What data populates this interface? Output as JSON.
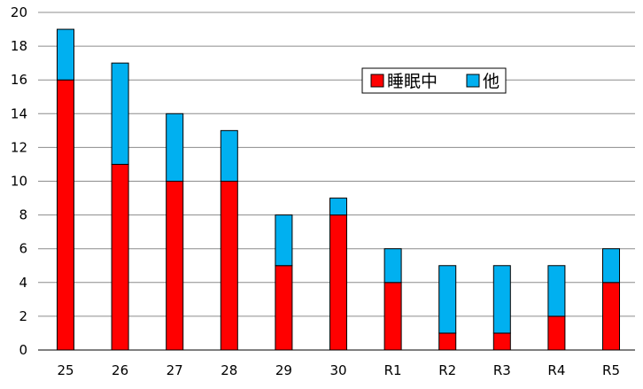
{
  "chart_data": {
    "type": "bar",
    "stacked": true,
    "categories": [
      "25",
      "26",
      "27",
      "28",
      "29",
      "30",
      "R1",
      "R2",
      "R3",
      "R4",
      "R5"
    ],
    "series": [
      {
        "name": "睡眠中",
        "color": "#ff0000",
        "values": [
          16,
          11,
          10,
          10,
          5,
          8,
          4,
          1,
          1,
          2,
          4
        ]
      },
      {
        "name": "他",
        "color": "#00b0f0",
        "values": [
          3,
          6,
          4,
          3,
          3,
          1,
          2,
          4,
          4,
          3,
          2
        ]
      }
    ],
    "ylim": [
      0,
      20
    ],
    "yticks": [
      "0",
      "2",
      "4",
      "6",
      "8",
      "10",
      "12",
      "14",
      "16",
      "18",
      "20"
    ],
    "grid": true,
    "legend_position": "top-right",
    "title": "",
    "xlabel": "",
    "ylabel": ""
  }
}
